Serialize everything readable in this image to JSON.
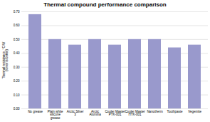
{
  "chart_data": {
    "type": "bar",
    "title": "Thermal compound performance comparison",
    "ylabel": "Thermal resistance, °C/W\n(lower is better)",
    "categories": [
      "No grease",
      "Plain white\nsilicone\ngrease",
      "Arctic Silver\n3",
      "Arctic\nAlumina",
      "Cooler Master\nPTK-001",
      "Cooler Master\nHTK-001",
      "Nanotherm",
      "Toothpaste",
      "Vegemite"
    ],
    "values": [
      0.68,
      0.5,
      0.46,
      0.5,
      0.46,
      0.5,
      0.5,
      0.44,
      0.46
    ],
    "color": "#9999cc",
    "ylim": [
      0.0,
      0.7
    ],
    "yticks": [
      {
        "value": 0.0,
        "label": "0.00"
      },
      {
        "value": 0.1,
        "label": "0.10"
      },
      {
        "value": 0.2,
        "label": "0.20"
      },
      {
        "value": 0.3,
        "label": "0.30"
      },
      {
        "value": 0.4,
        "label": "0.40"
      },
      {
        "value": 0.5,
        "label": "0.50"
      },
      {
        "value": 0.6,
        "label": "0.60"
      },
      {
        "value": 0.7,
        "label": "0.70"
      }
    ],
    "grid": true
  }
}
